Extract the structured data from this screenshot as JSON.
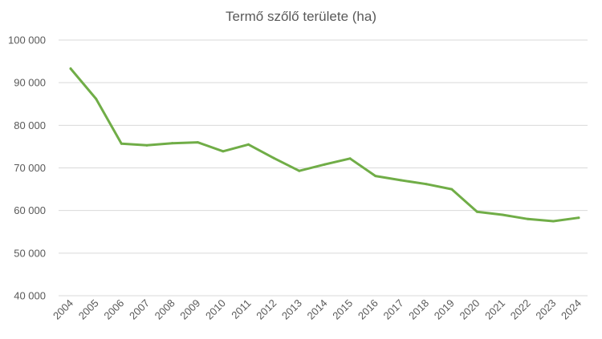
{
  "chart_data": {
    "type": "line",
    "title": "Termő szőlő területe (ha)",
    "xlabel": "",
    "ylabel": "",
    "x": [
      "2004",
      "2005",
      "2006",
      "2007",
      "2008",
      "2009",
      "2010",
      "2011",
      "2012",
      "2013",
      "2014",
      "2015",
      "2016",
      "2017",
      "2018",
      "2019",
      "2020",
      "2021",
      "2022",
      "2023",
      "2024"
    ],
    "series": [
      {
        "values": [
          93300,
          86200,
          75700,
          75300,
          75800,
          76000,
          73900,
          75500,
          72300,
          69300,
          70800,
          72200,
          68100,
          67100,
          66200,
          65000,
          59700,
          59000,
          58000,
          57500,
          58300
        ]
      }
    ],
    "ylim": [
      40000,
      100000
    ],
    "yticks": [
      40000,
      50000,
      60000,
      70000,
      80000,
      90000,
      100000
    ],
    "ytick_labels": [
      "40 000",
      "50 000",
      "60 000",
      "70 000",
      "80 000",
      "90 000",
      "100 000"
    ],
    "grid": true,
    "legend": "none",
    "colors": {
      "line": "#70ad47",
      "grid": "#d9d9d9",
      "text": "#595959"
    }
  }
}
